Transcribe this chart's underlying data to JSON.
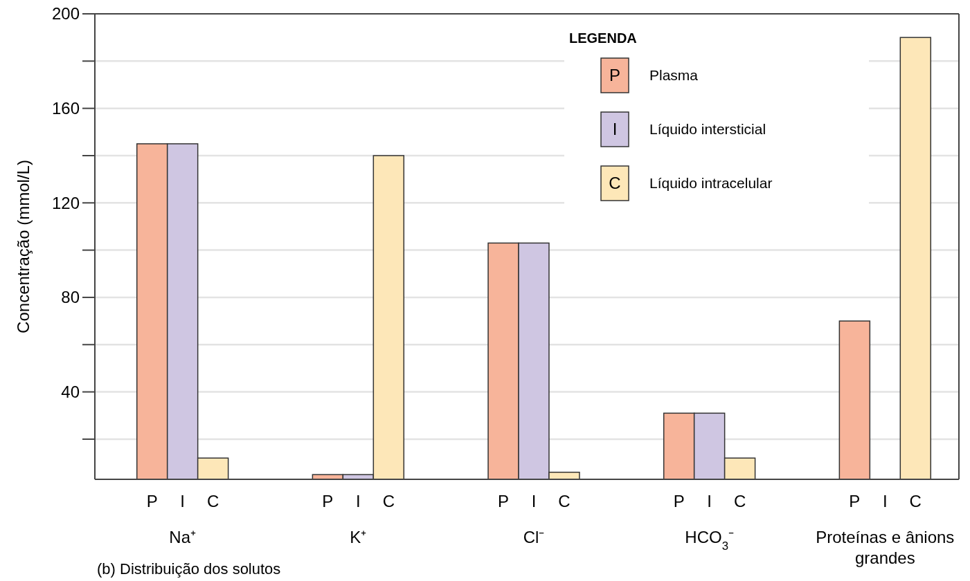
{
  "chart_data": {
    "type": "bar",
    "ylabel": "Concentração (mmol/L)",
    "categories": [
      "Na⁺",
      "K⁺",
      "Cl⁻",
      "HCO$_{3}$⁻",
      "Proteínas e ânions grandes"
    ],
    "series": [
      {
        "name": "Plasma",
        "color": "#f7b49a",
        "values": [
          145,
          5,
          103,
          31,
          70
        ]
      },
      {
        "name": "Líquido intersticial",
        "color": "#cfc6e2",
        "values": [
          145,
          5,
          103,
          31,
          null
        ]
      },
      {
        "name": "Líquido intracelular",
        "color": "#fde7b8",
        "values": [
          12,
          140,
          6,
          12,
          190
        ]
      }
    ],
    "ylim": [
      3,
      200
    ],
    "yticks": [
      {
        "value": 20,
        "label": null
      },
      40,
      {
        "value": 60,
        "label": null
      },
      80,
      {
        "value": 100,
        "label": null
      },
      120,
      {
        "value": 140,
        "label": null
      },
      160,
      {
        "value": 180,
        "label": null
      },
      200
    ],
    "grid": "y",
    "legend": "top right",
    "legend_title": "LEGENDA",
    "annotations": [
      "P",
      "I",
      "C",
      "(b) Distribuição dos solutos"
    ]
  }
}
